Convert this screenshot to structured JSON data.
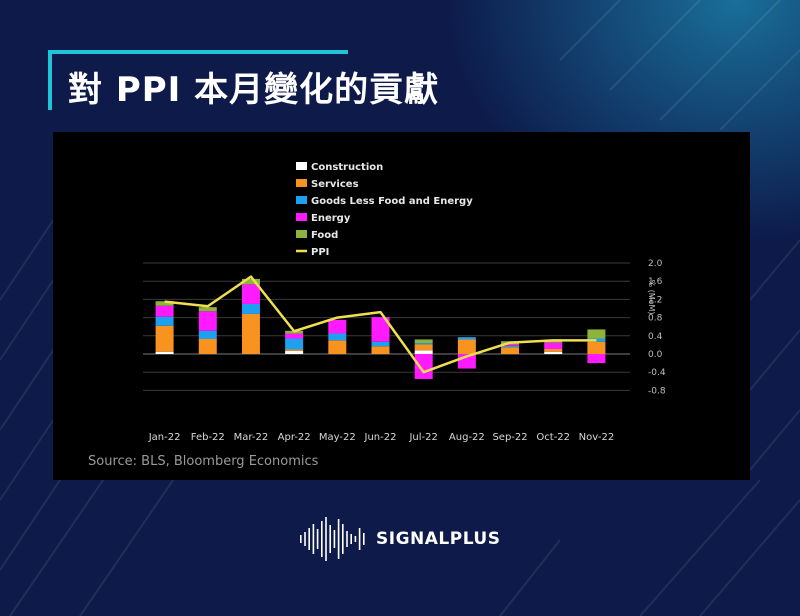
{
  "page": {
    "title": "對 PPI 本月變化的貢獻",
    "source": "Source: BLS, Bloomberg Economics",
    "logo_text": "SIGNALPLUS",
    "colors": {
      "background": "#0d1a4a",
      "accent": "#20c4d8",
      "chart_bg": "#000000"
    }
  },
  "chart_data": {
    "type": "bar",
    "stacked": true,
    "title": "",
    "xlabel": "",
    "ylabel": "% (MoM)",
    "ylim": [
      -0.8,
      2.0
    ],
    "yticks": [
      -0.8,
      -0.4,
      0.0,
      0.4,
      0.8,
      1.2,
      1.6,
      2.0
    ],
    "ytick_labels": [
      "-0.8",
      "-0.4",
      "0.0",
      "0.4",
      "0.8",
      "1.2",
      "1.6",
      "2.0"
    ],
    "y_axis_side": "right",
    "grid": true,
    "legend_position": "top-left",
    "categories": [
      "Jan-22",
      "Feb-22",
      "Mar-22",
      "Apr-22",
      "May-22",
      "Jun-22",
      "Jul-22",
      "Aug-22",
      "Sep-22",
      "Oct-22",
      "Nov-22"
    ],
    "series": [
      {
        "name": "Construction",
        "color": "#ffffff",
        "values": [
          0.05,
          0.0,
          0.0,
          0.07,
          0.0,
          0.0,
          0.08,
          0.0,
          0.0,
          0.05,
          0.0
        ]
      },
      {
        "name": "Services",
        "color": "#f7931e",
        "values": [
          0.57,
          0.33,
          0.88,
          0.03,
          0.3,
          0.17,
          0.13,
          0.32,
          0.15,
          0.06,
          0.27
        ]
      },
      {
        "name": "Goods Less Food and Energy",
        "color": "#1ea0f0",
        "values": [
          0.2,
          0.18,
          0.22,
          0.24,
          0.15,
          0.1,
          0.03,
          0.05,
          0.03,
          0.0,
          0.07
        ]
      },
      {
        "name": "Energy",
        "color": "#ff1aff",
        "values": [
          0.24,
          0.43,
          0.43,
          0.11,
          0.3,
          0.54,
          -0.55,
          -0.32,
          0.03,
          0.14,
          -0.2
        ]
      },
      {
        "name": "Food",
        "color": "#8db33a",
        "values": [
          0.1,
          0.09,
          0.12,
          0.06,
          0.0,
          0.0,
          0.08,
          0.0,
          0.07,
          0.07,
          0.2
        ]
      }
    ],
    "line": {
      "name": "PPI",
      "color": "#f0e050",
      "values": [
        1.15,
        1.05,
        1.7,
        0.5,
        0.8,
        0.92,
        -0.4,
        -0.05,
        0.25,
        0.3,
        0.3
      ]
    }
  }
}
